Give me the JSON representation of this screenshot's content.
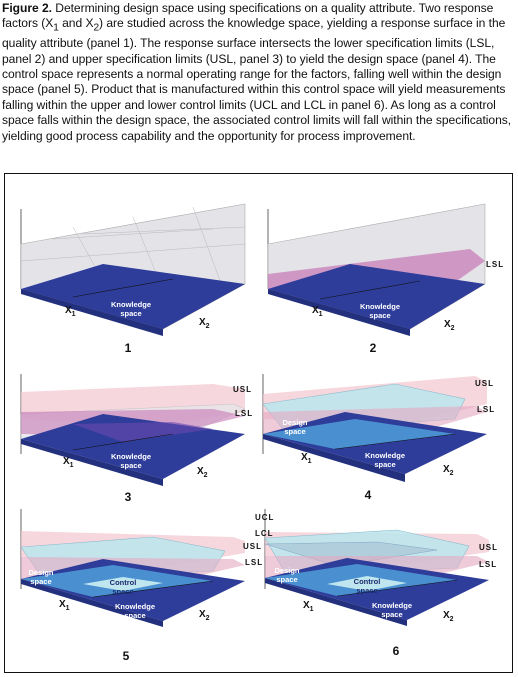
{
  "caption": {
    "lead": "Figure 2.",
    "text_a": " Determining design space using specifications on a quality attribute. Two response factors (X",
    "sub1": "1",
    "text_b": " and X",
    "sub2": "2",
    "text_c": ") are studied across the knowledge space, yielding a response surface in the quality attribute (panel 1). The response surface intersects the lower specification limits (LSL, panel 2) and upper specification limits (USL, panel 3) to yield the design space (panel 4). The control space represents a normal operating range for the factors, falling well within the design space (panel 5). Product that is manufactured within this control space will yield measurements falling within the upper and lower control limits (UCL and LCL in panel 6). As long as a control space falls within the design space, the associated control limits will fall within the specifications, yielding good process capability and the opportunity for process improvement."
  },
  "axis": {
    "x1": "X",
    "x1_sub": "1",
    "x2": "X",
    "x2_sub": "2"
  },
  "labels": {
    "knowledge_1": "Knowledge",
    "knowledge_2": "space",
    "design_1": "Design",
    "design_2": "space",
    "control_1": "Control",
    "control_2": "space",
    "lsl": "LSL",
    "usl": "USL",
    "ucl": "UCL",
    "lcl": "LCL"
  },
  "panels": [
    {
      "num": "1"
    },
    {
      "num": "2"
    },
    {
      "num": "3"
    },
    {
      "num": "4"
    },
    {
      "num": "5"
    },
    {
      "num": "6"
    }
  ],
  "colors": {
    "knowledge": "#2e3c9a",
    "design": "#4a90d0",
    "control": "#9fd6e0",
    "lsl_plane": "#c56fb0",
    "usl_plane": "#f0b7c4",
    "surface": "#d9d9dd"
  }
}
